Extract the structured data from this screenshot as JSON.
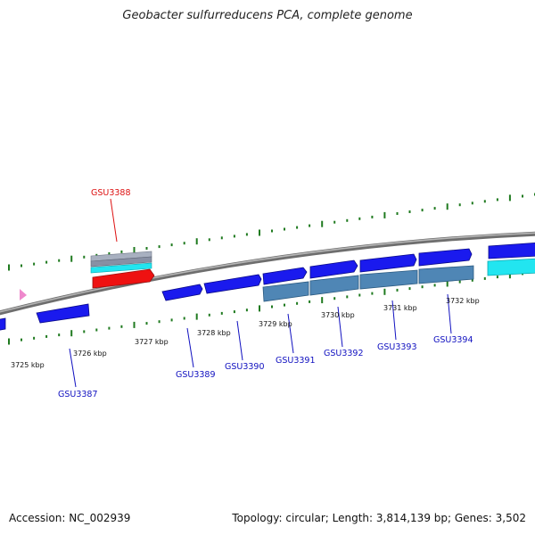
{
  "title": "Geobacter sulfurreducens PCA, complete genome",
  "footer": {
    "accession": "Accession: NC_002939",
    "summary": "Topology: circular; Length: 3,814,139 bp; Genes: 3,502"
  },
  "colors": {
    "backbone": "#8a8a8a",
    "tick": "#1f7a1f",
    "gene_blue": "#1a1aee",
    "gene_steel": "#4f86b5",
    "gene_red": "#ee1111",
    "gene_cyan": "#22e5f0",
    "gene_gray": "#a8b0c0",
    "label_blue": "#1010c0",
    "label_red": "#dd1111",
    "marker_pink": "#ee88cc"
  },
  "ticks": [
    "3725 kbp",
    "3726 kbp",
    "3727 kbp",
    "3728 kbp",
    "3729 kbp",
    "3730 kbp",
    "3731 kbp",
    "3732 kbp"
  ],
  "genes": {
    "GSU3387": "GSU3387",
    "GSU3388": "GSU3388",
    "GSU3389": "GSU3389",
    "GSU3390": "GSU3390",
    "GSU3391": "GSU3391",
    "GSU3392": "GSU3392",
    "GSU3393": "GSU3393",
    "GSU3394": "GSU3394"
  }
}
